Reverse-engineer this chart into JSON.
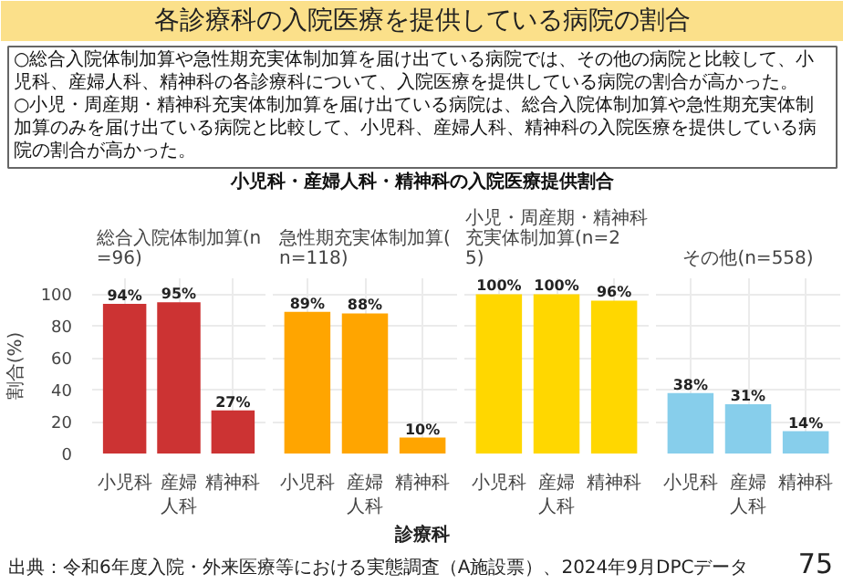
{
  "chart_data": [
    {
      "type": "other",
      "title": "各診療科の入院医療を提供している病院の割合",
      "subtitle": "小児科・産婦人科・精神科の入院医療提供割合",
      "annotations": [
        "○総合入院体制加算や急性期充実体制加算を届け出ている病院では、その他の病院と比較して、小児科、産婦人科、精神科の各診療科について、入院医療を提供している病院の割合が高かった。",
        "○小児・周産期・精神科充実体制加算を届け出ている病院は、総合入院体制加算や急性期充実体制加算のみを届け出ている病院と比較して、小児科、産婦人科、精神科の入院医療を提供している病院の割合が高かった。",
        "診療科",
        "出典：令和6年度入院・外来医療等における実態調査（A施設票）、2024年9月DPCデータ",
        "75"
      ]
    },
    {
      "type": "bar",
      "title": "総合入院体制加算(n=96)",
      "ylabel": "割合(%)",
      "categories": [
        "小児科",
        "産婦人科",
        "精神科"
      ],
      "values": [
        94,
        95,
        27
      ],
      "value_labels": [
        "94%",
        "95%",
        "27%"
      ],
      "color": "#cc3333",
      "ylim": [
        0,
        110
      ],
      "yticks": [
        0,
        20,
        40,
        60,
        80,
        100
      ],
      "grid": true
    },
    {
      "type": "bar",
      "title": "急性期充実体制加算(n=118)",
      "categories": [
        "小児科",
        "産婦人科",
        "精神科"
      ],
      "values": [
        89,
        88,
        10
      ],
      "value_labels": [
        "89%",
        "88%",
        "10%"
      ],
      "color": "#ffa500",
      "ylim": [
        0,
        110
      ],
      "yticks": [
        0,
        20,
        40,
        60,
        80,
        100
      ],
      "grid": true,
      "tick_labels": "x"
    },
    {
      "type": "bar",
      "title": "小児・周産期・精神科充実体制加算(n=25)",
      "categories": [
        "小児科",
        "産婦人科",
        "精神科"
      ],
      "values": [
        100,
        100,
        96
      ],
      "value_labels": [
        "100%",
        "100%",
        "96%"
      ],
      "color": "#ffd700",
      "ylim": [
        0,
        110
      ],
      "yticks": [
        0,
        20,
        40,
        60,
        80,
        100
      ],
      "grid": true,
      "tick_labels": "x"
    },
    {
      "type": "bar",
      "title": "その他(n=558)",
      "categories": [
        "小児科",
        "産婦人科",
        "精神科"
      ],
      "values": [
        38,
        31,
        14
      ],
      "value_labels": [
        "38%",
        "31%",
        "14%"
      ],
      "color": "#87ceeb",
      "ylim": [
        0,
        110
      ],
      "yticks": [
        0,
        20,
        40,
        60,
        80,
        100
      ],
      "grid": true,
      "tick_labels": "x"
    }
  ]
}
